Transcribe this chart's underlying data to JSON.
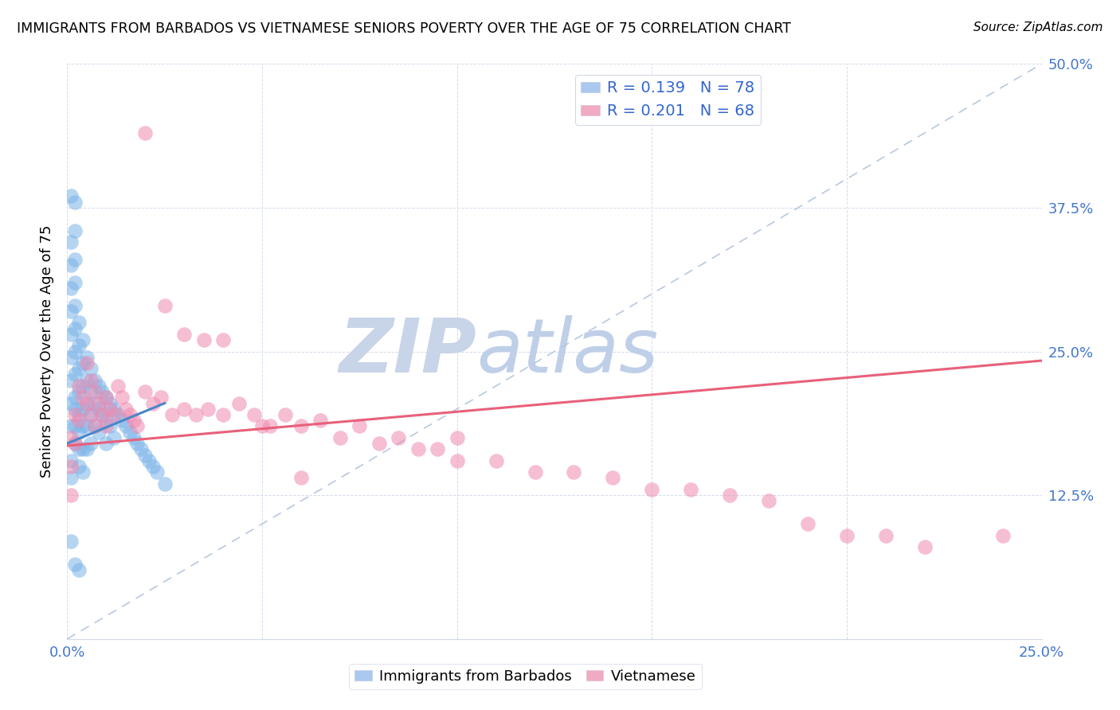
{
  "title": "IMMIGRANTS FROM BARBADOS VS VIETNAMESE SENIORS POVERTY OVER THE AGE OF 75 CORRELATION CHART",
  "source": "Source: ZipAtlas.com",
  "ylabel": "Seniors Poverty Over the Age of 75",
  "xlim": [
    0.0,
    0.25
  ],
  "ylim": [
    0.0,
    0.5
  ],
  "xtick_labels": [
    "0.0%",
    "",
    "",
    "",
    "",
    "25.0%"
  ],
  "ytick_labels": [
    "",
    "12.5%",
    "25.0%",
    "37.5%",
    "50.0%"
  ],
  "series1_color": "#7ab4e8",
  "series2_color": "#f08ab0",
  "line1_color": "#4a86c8",
  "line2_color": "#e8607a",
  "diagonal_color": "#b8c8e0",
  "watermark_color": "#ccd8ee",
  "R1": 0.139,
  "N1": 78,
  "R2": 0.201,
  "N2": 68,
  "legend_patch1_color": "#aac8f0",
  "legend_patch2_color": "#f0aac4",
  "legend_text_color": "#3366cc",
  "tick_color": "#4477cc",
  "barbados_x": [
    0.001,
    0.001,
    0.001,
    0.001,
    0.001,
    0.001,
    0.001,
    0.001,
    0.001,
    0.001,
    0.002,
    0.002,
    0.002,
    0.002,
    0.002,
    0.002,
    0.002,
    0.002,
    0.002,
    0.002,
    0.002,
    0.002,
    0.003,
    0.003,
    0.003,
    0.003,
    0.003,
    0.003,
    0.003,
    0.003,
    0.004,
    0.004,
    0.004,
    0.004,
    0.004,
    0.004,
    0.004,
    0.005,
    0.005,
    0.005,
    0.005,
    0.005,
    0.006,
    0.006,
    0.006,
    0.006,
    0.007,
    0.007,
    0.007,
    0.008,
    0.008,
    0.008,
    0.009,
    0.009,
    0.01,
    0.01,
    0.01,
    0.011,
    0.011,
    0.012,
    0.012,
    0.013,
    0.014,
    0.015,
    0.016,
    0.017,
    0.018,
    0.019,
    0.02,
    0.021,
    0.022,
    0.023,
    0.025,
    0.001,
    0.001,
    0.001,
    0.002,
    0.003
  ],
  "barbados_y": [
    0.385,
    0.345,
    0.325,
    0.305,
    0.285,
    0.265,
    0.245,
    0.225,
    0.205,
    0.185,
    0.38,
    0.355,
    0.33,
    0.31,
    0.29,
    0.27,
    0.25,
    0.23,
    0.21,
    0.2,
    0.185,
    0.17,
    0.275,
    0.255,
    0.235,
    0.215,
    0.195,
    0.18,
    0.165,
    0.15,
    0.26,
    0.24,
    0.22,
    0.2,
    0.185,
    0.165,
    0.145,
    0.245,
    0.225,
    0.205,
    0.185,
    0.165,
    0.235,
    0.215,
    0.195,
    0.17,
    0.225,
    0.205,
    0.185,
    0.22,
    0.2,
    0.18,
    0.215,
    0.195,
    0.21,
    0.19,
    0.17,
    0.205,
    0.185,
    0.2,
    0.175,
    0.195,
    0.19,
    0.185,
    0.18,
    0.175,
    0.17,
    0.165,
    0.16,
    0.155,
    0.15,
    0.145,
    0.135,
    0.155,
    0.14,
    0.085,
    0.065,
    0.06
  ],
  "vietnamese_x": [
    0.001,
    0.001,
    0.001,
    0.002,
    0.002,
    0.003,
    0.003,
    0.004,
    0.005,
    0.005,
    0.006,
    0.006,
    0.007,
    0.007,
    0.008,
    0.009,
    0.01,
    0.01,
    0.011,
    0.012,
    0.013,
    0.014,
    0.015,
    0.016,
    0.017,
    0.018,
    0.02,
    0.022,
    0.024,
    0.027,
    0.03,
    0.033,
    0.036,
    0.04,
    0.044,
    0.048,
    0.052,
    0.056,
    0.06,
    0.065,
    0.07,
    0.075,
    0.08,
    0.085,
    0.09,
    0.095,
    0.1,
    0.11,
    0.12,
    0.13,
    0.14,
    0.15,
    0.16,
    0.17,
    0.18,
    0.19,
    0.2,
    0.21,
    0.22,
    0.24,
    0.02,
    0.025,
    0.03,
    0.035,
    0.04,
    0.05,
    0.06,
    0.1
  ],
  "vietnamese_y": [
    0.175,
    0.15,
    0.125,
    0.195,
    0.17,
    0.22,
    0.19,
    0.21,
    0.24,
    0.205,
    0.225,
    0.195,
    0.215,
    0.185,
    0.205,
    0.195,
    0.21,
    0.185,
    0.2,
    0.195,
    0.22,
    0.21,
    0.2,
    0.195,
    0.19,
    0.185,
    0.215,
    0.205,
    0.21,
    0.195,
    0.2,
    0.195,
    0.2,
    0.195,
    0.205,
    0.195,
    0.185,
    0.195,
    0.185,
    0.19,
    0.175,
    0.185,
    0.17,
    0.175,
    0.165,
    0.165,
    0.155,
    0.155,
    0.145,
    0.145,
    0.14,
    0.13,
    0.13,
    0.125,
    0.12,
    0.1,
    0.09,
    0.09,
    0.08,
    0.09,
    0.44,
    0.29,
    0.265,
    0.26,
    0.26,
    0.185,
    0.14,
    0.175
  ],
  "blue_line_x": [
    0.0,
    0.025
  ],
  "blue_line_y": [
    0.17,
    0.205
  ],
  "pink_line_x": [
    0.0,
    0.25
  ],
  "pink_line_y": [
    0.168,
    0.242
  ]
}
